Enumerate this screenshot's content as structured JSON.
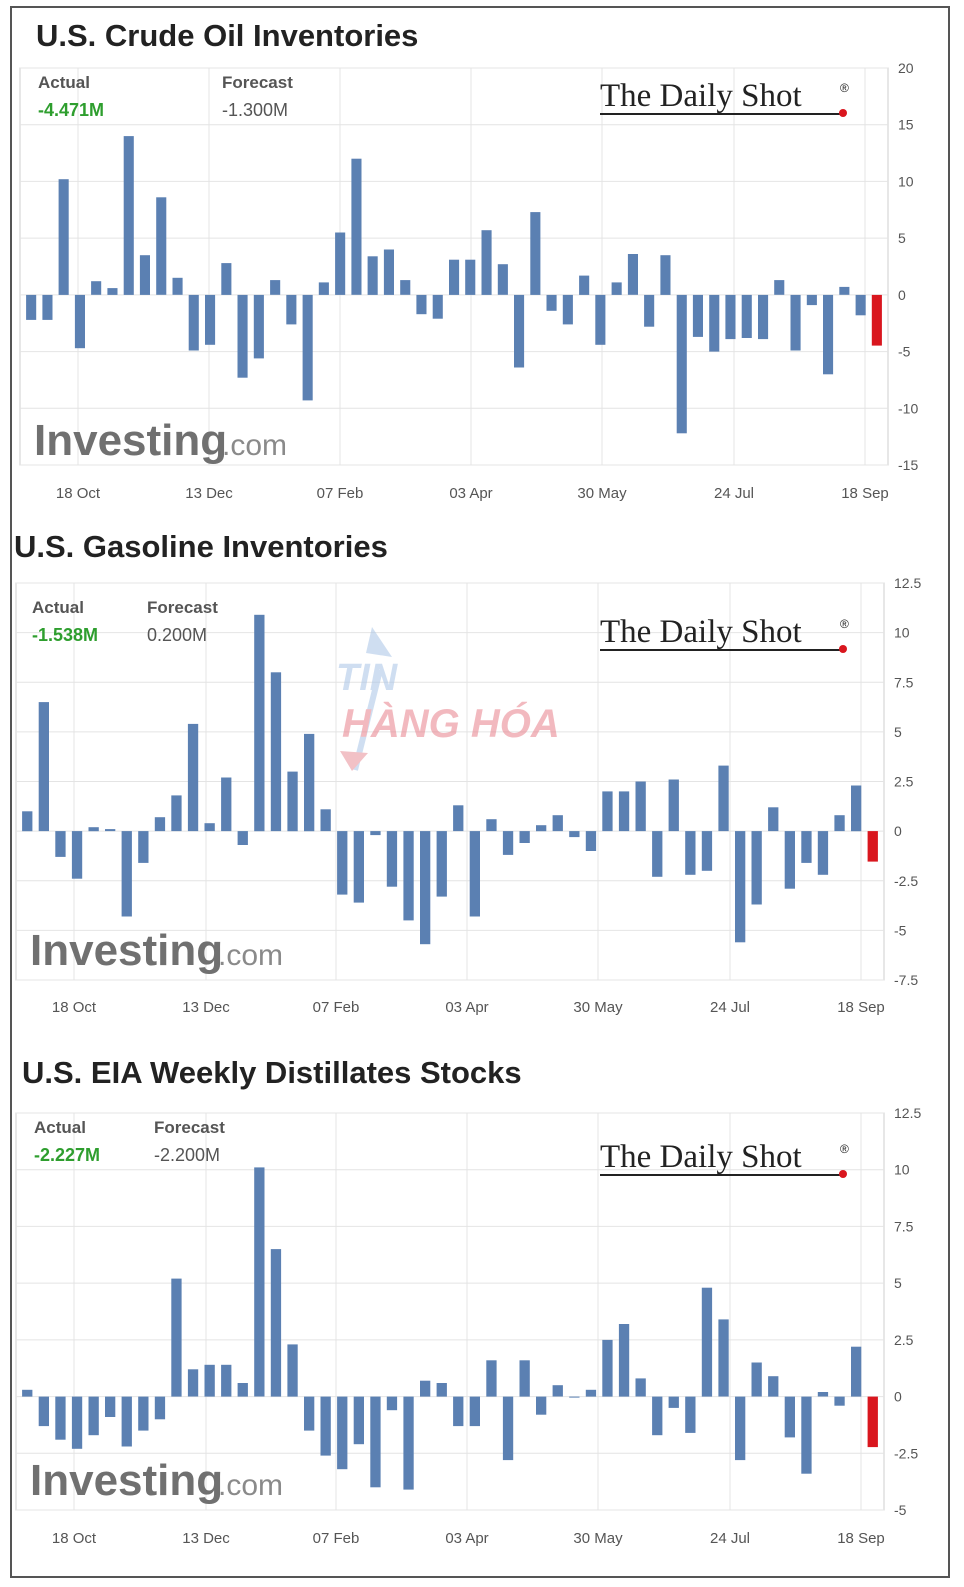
{
  "watermark": {
    "line1": "TIN",
    "line2": "HÀNG HÓA"
  },
  "colors": {
    "bar": "#5b80b2",
    "latest": "#d9161e",
    "actual_value": "#2e9e2e",
    "grid": "#e4e4e4",
    "text": "#555555"
  },
  "charts": [
    {
      "title": "U.S. Crude Oil Inventories",
      "actual_label": "Actual",
      "actual_value": "-4.471M",
      "forecast_label": "Forecast",
      "forecast_value": "-1.300M",
      "brand": "The Daily Shot",
      "brand_mark": "®",
      "logo_bold": "Investing",
      "logo_light": ".com",
      "x_ticks": [
        "18 Oct",
        "13 Dec",
        "07 Feb",
        "03 Apr",
        "30 May",
        "24 Jul",
        "18 Sep"
      ],
      "y_ticks": [
        "20",
        "15",
        "10",
        "5",
        "0",
        "-5",
        "-10",
        "-15"
      ]
    },
    {
      "title": "U.S. Gasoline Inventories",
      "actual_label": "Actual",
      "actual_value": "-1.538M",
      "forecast_label": "Forecast",
      "forecast_value": "0.200M",
      "brand": "The Daily Shot",
      "brand_mark": "®",
      "logo_bold": "Investing",
      "logo_light": ".com",
      "x_ticks": [
        "18 Oct",
        "13 Dec",
        "07 Feb",
        "03 Apr",
        "30 May",
        "24 Jul",
        "18 Sep"
      ],
      "y_ticks": [
        "12.5",
        "10",
        "7.5",
        "5",
        "2.5",
        "0",
        "-2.5",
        "-5",
        "-7.5"
      ]
    },
    {
      "title": "U.S. EIA Weekly Distillates Stocks",
      "actual_label": "Actual",
      "actual_value": "-2.227M",
      "forecast_label": "Forecast",
      "forecast_value": "-2.200M",
      "brand": "The Daily Shot",
      "brand_mark": "®",
      "logo_bold": "Investing",
      "logo_light": ".com",
      "x_ticks": [
        "18 Oct",
        "13 Dec",
        "07 Feb",
        "03 Apr",
        "30 May",
        "24 Jul",
        "18 Sep"
      ],
      "y_ticks": [
        "12.5",
        "10",
        "7.5",
        "5",
        "2.5",
        "0",
        "-2.5",
        "-5"
      ]
    }
  ],
  "chart_data": [
    {
      "type": "bar",
      "title": "U.S. Crude Oil Inventories",
      "ylim": [
        -15,
        20
      ],
      "grid": true,
      "x_ticks": [
        "18 Oct",
        "13 Dec",
        "07 Feb",
        "03 Apr",
        "30 May",
        "24 Jul",
        "18 Sep"
      ],
      "values": [
        -2.2,
        -2.2,
        10.2,
        -4.7,
        1.2,
        0.6,
        14.0,
        3.5,
        8.6,
        1.5,
        -4.9,
        -4.4,
        2.8,
        -7.3,
        -5.6,
        1.3,
        -2.6,
        -9.3,
        1.1,
        5.5,
        12.0,
        3.4,
        4.0,
        1.3,
        -1.7,
        -2.1,
        3.1,
        3.1,
        5.7,
        2.7,
        -6.4,
        7.3,
        -1.4,
        -2.6,
        1.7,
        -4.4,
        1.1,
        3.6,
        -2.8,
        3.5,
        -12.2,
        -3.7,
        -5.0,
        -3.9,
        -3.8,
        -3.9,
        1.3,
        -4.9,
        -0.9,
        -7.0,
        0.7,
        -1.8,
        -4.471
      ],
      "latest_index": 52
    },
    {
      "type": "bar",
      "title": "U.S. Gasoline Inventories",
      "ylim": [
        -7.5,
        12.5
      ],
      "grid": true,
      "x_ticks": [
        "18 Oct",
        "13 Dec",
        "07 Feb",
        "03 Apr",
        "30 May",
        "24 Jul",
        "18 Sep"
      ],
      "values": [
        1.0,
        6.5,
        -1.3,
        -2.4,
        0.2,
        0.1,
        -4.3,
        -1.6,
        0.7,
        1.8,
        5.4,
        0.4,
        2.7,
        -0.7,
        10.9,
        8.0,
        3.0,
        4.9,
        1.1,
        -3.2,
        -3.6,
        -0.2,
        -2.8,
        -4.5,
        -5.7,
        -3.3,
        1.3,
        -4.3,
        0.6,
        -1.2,
        -0.6,
        0.3,
        0.8,
        -0.3,
        -1.0,
        2.0,
        2.0,
        2.5,
        -2.3,
        2.6,
        -2.2,
        -2.0,
        3.3,
        -5.6,
        -3.7,
        1.2,
        -2.9,
        -1.6,
        -2.2,
        0.8,
        2.3,
        -1.538
      ],
      "latest_index": 51
    },
    {
      "type": "bar",
      "title": "U.S. EIA Weekly Distillates Stocks",
      "ylim": [
        -5,
        12.5
      ],
      "grid": true,
      "x_ticks": [
        "18 Oct",
        "13 Dec",
        "07 Feb",
        "03 Apr",
        "30 May",
        "24 Jul",
        "18 Sep"
      ],
      "values": [
        0.3,
        -1.3,
        -1.9,
        -2.3,
        -1.7,
        -0.9,
        -2.2,
        -1.5,
        -1.0,
        5.2,
        1.2,
        1.4,
        1.4,
        0.6,
        10.1,
        6.5,
        2.3,
        -1.5,
        -2.6,
        -3.2,
        -2.1,
        -4.0,
        -0.6,
        -4.1,
        0.7,
        0.6,
        -1.3,
        -1.3,
        1.6,
        -2.8,
        1.6,
        -0.8,
        0.5,
        0.0,
        0.3,
        2.5,
        3.2,
        0.8,
        -1.7,
        -0.5,
        -1.6,
        4.8,
        3.4,
        -2.8,
        1.5,
        0.9,
        -1.8,
        -3.4,
        0.2,
        -0.4,
        2.2,
        -2.227
      ],
      "latest_index": 51
    }
  ]
}
